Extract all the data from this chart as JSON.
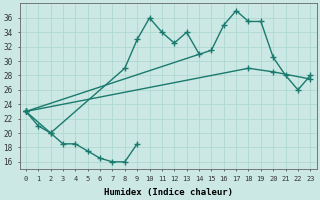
{
  "title": "",
  "xlabel": "Humidex (Indice chaleur)",
  "ylabel": "",
  "bg_color": "#cce8e4",
  "grid_color": "#b0d8d2",
  "line_color": "#1a7a6e",
  "line_width": 1.0,
  "marker": "+",
  "marker_size": 4,
  "xlim": [
    -0.5,
    23.5
  ],
  "ylim": [
    15,
    38
  ],
  "yticks": [
    16,
    18,
    20,
    22,
    24,
    26,
    28,
    30,
    32,
    34,
    36
  ],
  "xticks": [
    0,
    1,
    2,
    3,
    4,
    5,
    6,
    7,
    8,
    9,
    10,
    11,
    12,
    13,
    14,
    15,
    16,
    17,
    18,
    19,
    20,
    21,
    22,
    23
  ],
  "series": [
    {
      "x": [
        0,
        1,
        2,
        3,
        4,
        5,
        6,
        7,
        8,
        9
      ],
      "y": [
        23,
        21,
        20,
        18.5,
        18.5,
        17.5,
        16.5,
        16,
        16,
        18.5
      ]
    },
    {
      "x": [
        0,
        2,
        8,
        9,
        10,
        11,
        12,
        13,
        14
      ],
      "y": [
        23,
        20,
        29,
        33,
        36,
        34,
        32.5,
        34,
        31
      ]
    },
    {
      "x": [
        0,
        15,
        16,
        17,
        18,
        19,
        20,
        21,
        22,
        23
      ],
      "y": [
        23,
        31.5,
        35,
        37,
        35.5,
        35.5,
        30.5,
        28,
        26,
        28
      ]
    },
    {
      "x": [
        0,
        18,
        20,
        23
      ],
      "y": [
        23,
        29,
        28.5,
        27.5
      ]
    }
  ]
}
